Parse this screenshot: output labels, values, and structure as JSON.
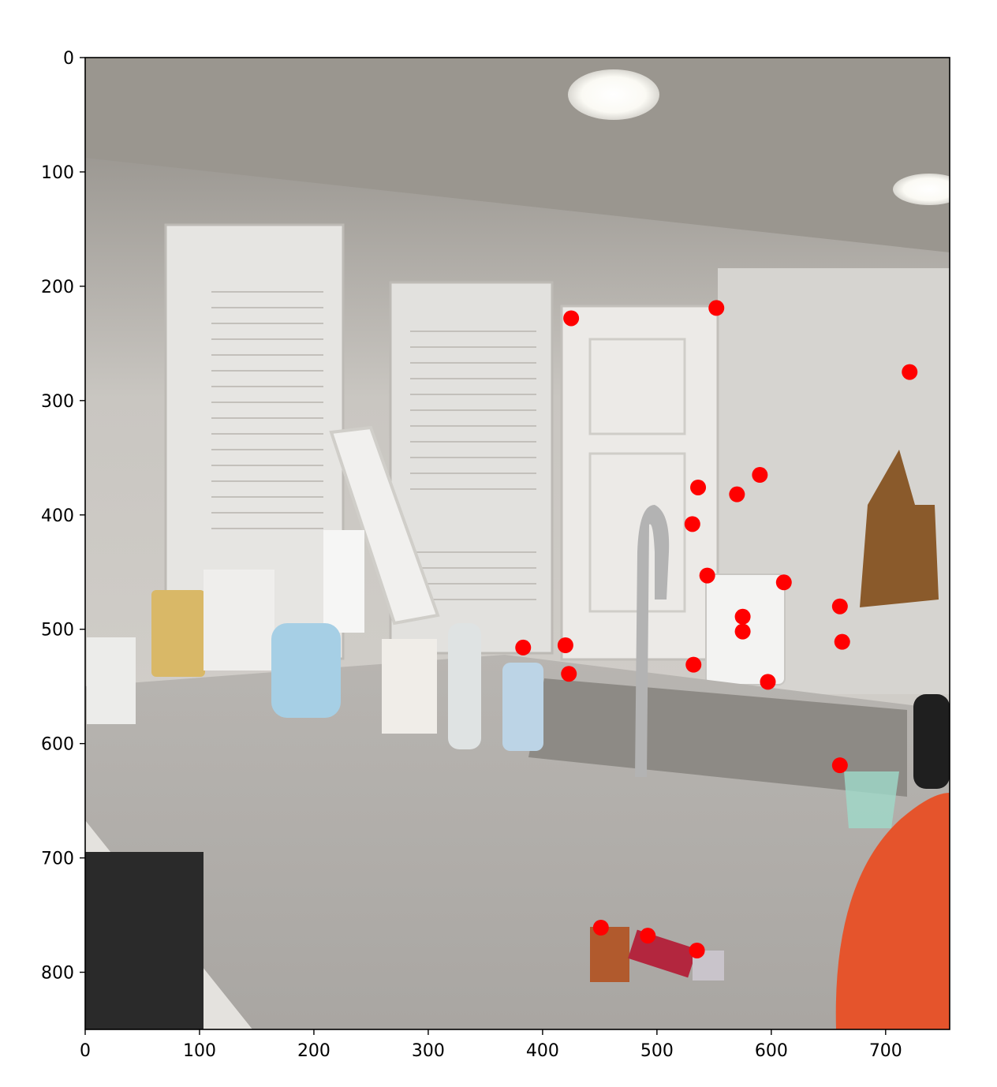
{
  "chart_data": {
    "type": "scatter",
    "title": "",
    "xlabel": "",
    "ylabel": "",
    "background": "photo",
    "background_description": "",
    "xlim": [
      0,
      756
    ],
    "ylim": [
      850,
      0
    ],
    "y_inverted": true,
    "grid": false,
    "legend": "none",
    "x_ticks": [
      0,
      100,
      200,
      300,
      400,
      500,
      600,
      700
    ],
    "y_ticks": [
      0,
      100,
      200,
      300,
      400,
      500,
      600,
      700,
      800
    ],
    "series": [
      {
        "marker_color": "#ff0000",
        "points": [
          {
            "x": 425,
            "y": 228
          },
          {
            "x": 552,
            "y": 219
          },
          {
            "x": 721,
            "y": 275
          },
          {
            "x": 590,
            "y": 365
          },
          {
            "x": 536,
            "y": 376
          },
          {
            "x": 570,
            "y": 382
          },
          {
            "x": 531,
            "y": 408
          },
          {
            "x": 544,
            "y": 453
          },
          {
            "x": 611,
            "y": 459
          },
          {
            "x": 660,
            "y": 480
          },
          {
            "x": 575,
            "y": 489
          },
          {
            "x": 575,
            "y": 502
          },
          {
            "x": 662,
            "y": 511
          },
          {
            "x": 420,
            "y": 514
          },
          {
            "x": 383,
            "y": 516
          },
          {
            "x": 532,
            "y": 531
          },
          {
            "x": 423,
            "y": 539
          },
          {
            "x": 597,
            "y": 546
          },
          {
            "x": 660,
            "y": 619
          },
          {
            "x": 451,
            "y": 761
          },
          {
            "x": 492,
            "y": 768
          },
          {
            "x": 535,
            "y": 781
          }
        ]
      }
    ]
  }
}
